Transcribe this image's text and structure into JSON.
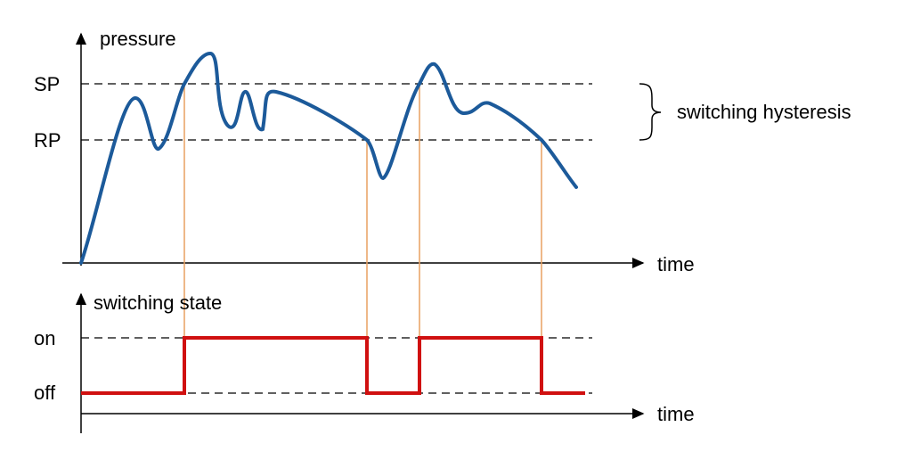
{
  "upper": {
    "y_label": "pressure",
    "levels": [
      "SP",
      "RP"
    ],
    "x_label": "time",
    "annotation": "switching hysteresis"
  },
  "lower": {
    "y_label": "switching state",
    "levels": [
      "on",
      "off"
    ],
    "x_label": "time"
  }
}
